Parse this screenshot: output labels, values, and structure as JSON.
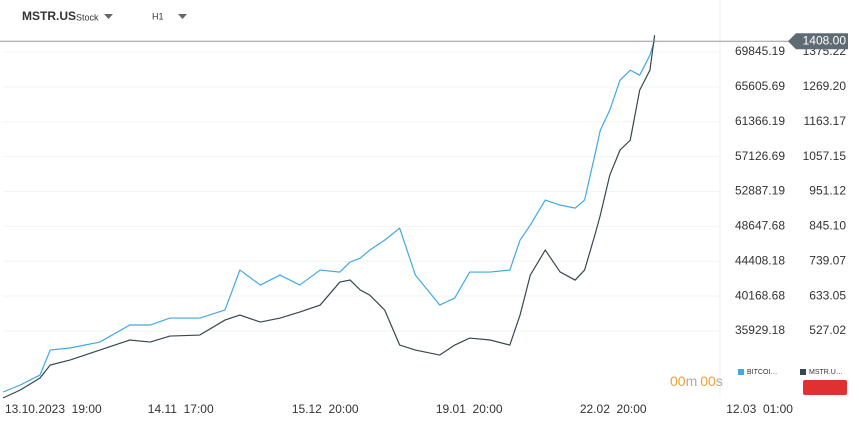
{
  "header": {
    "symbol": "MSTR.US",
    "kind": "Stock",
    "interval": "H1"
  },
  "timer": [
    "00",
    "m",
    "00",
    "s"
  ],
  "chart_data": {
    "type": "line",
    "x": [
      0,
      2.2,
      4.7,
      6,
      8.5,
      12.3,
      16.1,
      18.7,
      21.2,
      25,
      28.2,
      30.1,
      32.7,
      35.2,
      37.7,
      40.3,
      42.8,
      44.1,
      45.4,
      46.6,
      48.5,
      50.4,
      52.4,
      55.5,
      57.4,
      59.3,
      61.9,
      64.4,
      65.7,
      67,
      68.9,
      70.8,
      72.7,
      73.9,
      75.2,
      75.9,
      77.1,
      78.4,
      79.7,
      80.9,
      82.2,
      82.8
    ],
    "xlim": [
      0,
      100
    ],
    "xticks": [
      {
        "value": 0.25,
        "label": "13.10.2023  19:00"
      },
      {
        "value": 18.4,
        "label": "14.11  17:00"
      },
      {
        "value": 36.7,
        "label": "15.12  20:00"
      },
      {
        "value": 55,
        "label": "19.01  20:00"
      },
      {
        "value": 73.3,
        "label": "22.02  20:00"
      },
      {
        "value": 91.9,
        "label": "12.03  01:00"
      }
    ],
    "ylim": [
      27790,
      74340
    ],
    "yticks": [
      69845.19,
      65605.69,
      61366.19,
      57126.69,
      52887.19,
      48647.68,
      44408.18,
      40168.68,
      35929.18
    ],
    "y2lim": [
      323.5,
      1487.6
    ],
    "y2ticks": [
      1375.22,
      {
        "value": 1269.2,
        "label": "1269.20"
      },
      1163.17,
      1057.15,
      951.12,
      {
        "value": 845.1,
        "label": "845.10"
      },
      739.07,
      633.05,
      527.02
    ],
    "last_price": {
      "value": 1408,
      "label": "1408.00"
    },
    "series": [
      {
        "name": "BITCOI…",
        "color": "#3fa9e0",
        "values": [
          28519,
          29370,
          30584,
          33621,
          33864,
          34593,
          36658,
          36658,
          37508,
          37508,
          38480,
          43339,
          41517,
          42731,
          41517,
          43339,
          43096,
          44310,
          44796,
          45768,
          46983,
          48440,
          42731,
          39087,
          39938,
          43096,
          43096,
          43339,
          46983,
          48805,
          51842,
          51234,
          50870,
          51842,
          57308,
          60344,
          62774,
          66418,
          67633,
          67025,
          69455,
          71277
        ]
      },
      {
        "name": "MSTR.U…",
        "color": "#37474f",
        "axis": "y2",
        "values": [
          323.5,
          347.8,
          384.2,
          423.7,
          438.9,
          469.3,
          499.7,
          493.6,
          511.8,
          514.8,
          560.4,
          575.6,
          554.3,
          566.5,
          584.7,
          606,
          675.9,
          681.9,
          651.6,
          636.4,
          590.8,
          484.5,
          469.3,
          454.1,
          484.5,
          505.7,
          499.7,
          484.5,
          575.6,
          697.1,
          773.1,
          706.2,
          681.9,
          712.3,
          818.6,
          879.4,
          1000.9,
          1076.9,
          1107.3,
          1259.2,
          1319.9,
          1426.2
        ]
      }
    ]
  }
}
